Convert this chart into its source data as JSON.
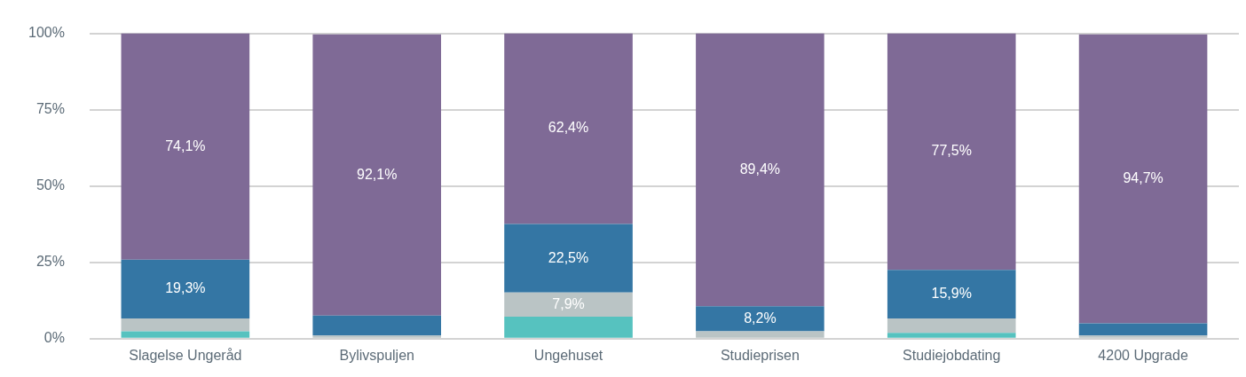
{
  "chart_data": {
    "type": "bar",
    "stacked": true,
    "categories": [
      "Slagelse Ungeråd",
      "Bylivspuljen",
      "Ungehuset",
      "Studieprisen",
      "Studiejobdating",
      "4200 Upgrade"
    ],
    "series": [
      {
        "color": "#56c2bf",
        "values": [
          2.4,
          null,
          7.2,
          0,
          1.9,
          null
        ],
        "value_labels": [
          null,
          null,
          null,
          null,
          null,
          null
        ]
      },
      {
        "color": "#bac4c5",
        "values": [
          4.2,
          1.0,
          7.9,
          2.4,
          4.7,
          1.0
        ],
        "value_labels": [
          null,
          null,
          "7,9%",
          null,
          null,
          null
        ]
      },
      {
        "color": "#3476a4",
        "values": [
          19.3,
          6.6,
          22.5,
          8.2,
          15.9,
          4.0
        ],
        "value_labels": [
          "19,3%",
          null,
          "22,5%",
          "8,2%",
          "15,9%",
          null
        ]
      },
      {
        "color": "#7f6a96",
        "values": [
          74.1,
          92.1,
          62.4,
          89.4,
          77.5,
          94.7
        ],
        "value_labels": [
          "74,1%",
          "92,1%",
          "62,4%",
          "89,4%",
          "77,5%",
          "94,7%"
        ]
      }
    ],
    "ylim": [
      0,
      100
    ],
    "yticks": [
      {
        "value": 0,
        "label": "0%"
      },
      {
        "value": 25,
        "label": "25%"
      },
      {
        "value": 50,
        "label": "50%"
      },
      {
        "value": 75,
        "label": "75%"
      },
      {
        "value": 100,
        "label": "100%"
      }
    ],
    "grid": "y",
    "legend": false
  }
}
